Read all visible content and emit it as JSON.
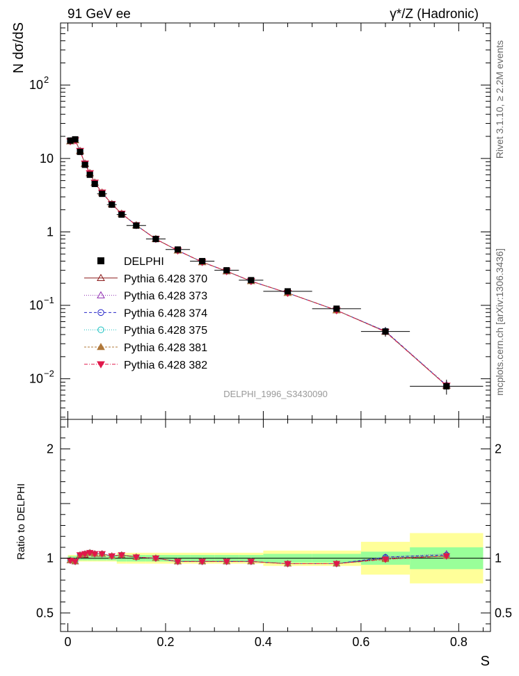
{
  "header": {
    "left": "91 GeV ee",
    "right": "γ*/Z (Hadronic)"
  },
  "side_labels": {
    "rivet": "Rivet 3.1.10, ≥ 2.2M events",
    "mcplots": "mcplots.cern.ch [arXiv:1306.3436]"
  },
  "watermark": "DELPHI_1996_S3430090",
  "chart_data": {
    "type": "scatter",
    "ylabel": "N dσ/dS",
    "ratio_ylabel": "Ratio to DELPHI",
    "xlabel": "S",
    "y_scale": "log",
    "xlim": [
      -0.015,
      0.865
    ],
    "ylim": [
      0.0028,
      700
    ],
    "ratio_ylim": [
      0.33,
      2.27
    ],
    "x_ticks": [
      {
        "v": 0,
        "label": "0"
      },
      {
        "v": 0.2,
        "label": "0.2"
      },
      {
        "v": 0.4,
        "label": "0.4"
      },
      {
        "v": 0.6,
        "label": "0.6"
      },
      {
        "v": 0.8,
        "label": "0.8"
      }
    ],
    "y_ticks": [
      {
        "v": 100,
        "base": "10",
        "exp": "2"
      },
      {
        "v": 10,
        "base": "10",
        "exp": ""
      },
      {
        "v": 1,
        "base": "1",
        "exp": ""
      },
      {
        "v": 0.1,
        "base": "10",
        "exp": "−1"
      },
      {
        "v": 0.01,
        "base": "10",
        "exp": "−2"
      }
    ],
    "ratio_ticks": [
      {
        "v": 2,
        "label": "2"
      },
      {
        "v": 1,
        "label": "1"
      },
      {
        "v": 0.5,
        "label": "0.5"
      }
    ],
    "legend_position": "middle-left",
    "x": [
      0.005,
      0.015,
      0.025,
      0.035,
      0.045,
      0.055,
      0.07,
      0.09,
      0.11,
      0.14,
      0.18,
      0.225,
      0.275,
      0.325,
      0.375,
      0.45,
      0.55,
      0.65,
      0.775
    ],
    "bin_edges": [
      0,
      0.01,
      0.02,
      0.03,
      0.04,
      0.05,
      0.06,
      0.08,
      0.1,
      0.12,
      0.16,
      0.2,
      0.25,
      0.3,
      0.35,
      0.4,
      0.5,
      0.6,
      0.7,
      0.85
    ],
    "data": {
      "name": "DELPHI",
      "values": [
        17.5,
        18.2,
        12.3,
        8.2,
        6.0,
        4.5,
        3.3,
        2.35,
        1.72,
        1.22,
        0.8,
        0.575,
        0.4,
        0.3,
        0.22,
        0.155,
        0.09,
        0.044,
        0.0079
      ],
      "band_inner": [
        0.02,
        0.02,
        0.02,
        0.02,
        0.02,
        0.02,
        0.02,
        0.02,
        0.03,
        0.03,
        0.03,
        0.03,
        0.03,
        0.03,
        0.03,
        0.04,
        0.04,
        0.06,
        0.1
      ],
      "band_outer": [
        0.03,
        0.03,
        0.03,
        0.03,
        0.03,
        0.03,
        0.03,
        0.03,
        0.05,
        0.05,
        0.05,
        0.05,
        0.05,
        0.05,
        0.05,
        0.07,
        0.07,
        0.15,
        0.23
      ]
    },
    "series": [
      {
        "name": "Pythia 6.428 370",
        "color": "#8b1a1a",
        "marker": "triangle-open",
        "dash": "",
        "ratio": [
          0.98,
          0.97,
          1.03,
          1.03,
          1.05,
          1.04,
          1.04,
          1.02,
          1.03,
          1.01,
          1.0,
          0.97,
          0.97,
          0.97,
          0.97,
          0.95,
          0.95,
          1.0,
          1.02
        ]
      },
      {
        "name": "Pythia 6.428 373",
        "color": "#8e2bb0",
        "marker": "triangle-open",
        "dash": "1 2",
        "ratio": [
          0.98,
          0.97,
          1.03,
          1.04,
          1.05,
          1.04,
          1.04,
          1.02,
          1.03,
          1.01,
          1.0,
          0.97,
          0.97,
          0.97,
          0.97,
          0.95,
          0.95,
          1.01,
          1.04
        ]
      },
      {
        "name": "Pythia 6.428 374",
        "color": "#2323c8",
        "marker": "circle-open",
        "dash": "4 3",
        "ratio": [
          0.98,
          0.97,
          1.03,
          1.04,
          1.05,
          1.04,
          1.04,
          1.02,
          1.03,
          1.01,
          1.0,
          0.97,
          0.97,
          0.97,
          0.97,
          0.95,
          0.95,
          1.01,
          1.03
        ]
      },
      {
        "name": "Pythia 6.428 375",
        "color": "#18c0c0",
        "marker": "circle-open",
        "dash": "1 2",
        "ratio": [
          0.98,
          0.97,
          1.03,
          1.04,
          1.05,
          1.04,
          1.04,
          1.02,
          1.03,
          1.01,
          1.0,
          0.97,
          0.97,
          0.97,
          0.97,
          0.95,
          0.95,
          1.0,
          1.02
        ]
      },
      {
        "name": "Pythia 6.428 381",
        "color": "#b0783a",
        "marker": "triangle-filled",
        "dash": "3 2",
        "ratio": [
          0.98,
          0.97,
          1.03,
          1.04,
          1.05,
          1.04,
          1.04,
          1.02,
          1.03,
          1.01,
          1.0,
          0.97,
          0.97,
          0.97,
          0.97,
          0.95,
          0.95,
          0.99,
          1.02
        ]
      },
      {
        "name": "Pythia 6.428 382",
        "color": "#e0184a",
        "marker": "triangle-down-filled",
        "dash": "5 2 1 2",
        "ratio": [
          0.98,
          0.97,
          1.03,
          1.04,
          1.05,
          1.04,
          1.04,
          1.02,
          1.03,
          1.01,
          1.0,
          0.97,
          0.97,
          0.97,
          0.97,
          0.95,
          0.95,
          0.99,
          1.02
        ]
      }
    ],
    "colors": {
      "band_outer": "#ffff99",
      "band_inner": "#99ff99",
      "data": "#000000"
    }
  }
}
